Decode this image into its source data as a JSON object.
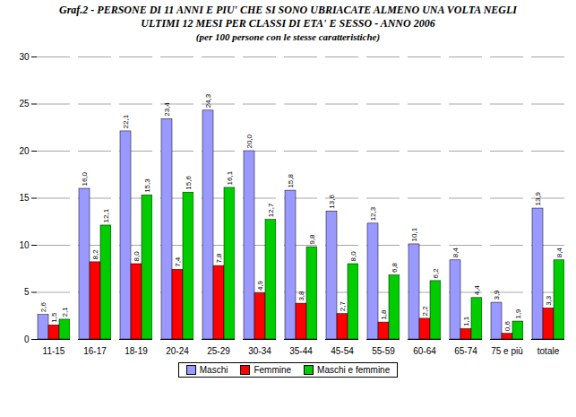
{
  "chart_data": {
    "type": "bar",
    "title": "Graf.2 - PERSONE DI 11 ANNI E PIU' CHE SI SONO UBRIACATE ALMENO UNA VOLTA NEGLI ULTIMI 12 MESI PER CLASSI DI ETA' E SESSO - ANNO 2006",
    "subtitle": "(per 100 persone con le stesse caratteristiche)",
    "categories": [
      "11-15",
      "16-17",
      "18-19",
      "20-24",
      "25-29",
      "30-34",
      "35-44",
      "45-54",
      "55-59",
      "60-64",
      "65-74",
      "75 e più",
      "totale"
    ],
    "series": [
      {
        "name": "Maschi",
        "color": "#9999ff",
        "values": [
          2.6,
          16.0,
          22.1,
          23.4,
          24.3,
          20.0,
          15.8,
          13.6,
          12.3,
          10.1,
          8.4,
          3.9,
          13.9
        ],
        "value_labels": [
          "2,6",
          "16,0",
          "22,1",
          "23,4",
          "24,3",
          "20,0",
          "15,8",
          "13,6",
          "12,3",
          "10,1",
          "8,4",
          "3,9",
          "13,9"
        ]
      },
      {
        "name": "Femmine",
        "color": "#ff0000",
        "values": [
          1.5,
          8.2,
          8.0,
          7.4,
          7.8,
          4.9,
          3.8,
          2.7,
          1.8,
          2.2,
          1.1,
          0.6,
          3.3
        ],
        "value_labels": [
          "1,5",
          "8,2",
          "8,0",
          "7,4",
          "7,8",
          "4,9",
          "3,8",
          "2,7",
          "1,8",
          "2,2",
          "1,1",
          "0,6",
          "3,3"
        ]
      },
      {
        "name": "Maschi e femmine",
        "color": "#00cc00",
        "values": [
          2.1,
          12.1,
          15.3,
          15.6,
          16.1,
          12.7,
          9.8,
          8.0,
          6.8,
          6.2,
          4.4,
          1.9,
          8.4
        ],
        "value_labels": [
          "2,1",
          "12,1",
          "15,3",
          "15,6",
          "16,1",
          "12,7",
          "9,8",
          "8,0",
          "6,8",
          "6,2",
          "4,4",
          "1,9",
          "8,4"
        ]
      }
    ],
    "ylim": [
      0,
      30
    ],
    "yticks": [
      0,
      5,
      10,
      15,
      20,
      25,
      30
    ],
    "grid": true,
    "data_labels": true,
    "legend": "bottom"
  }
}
